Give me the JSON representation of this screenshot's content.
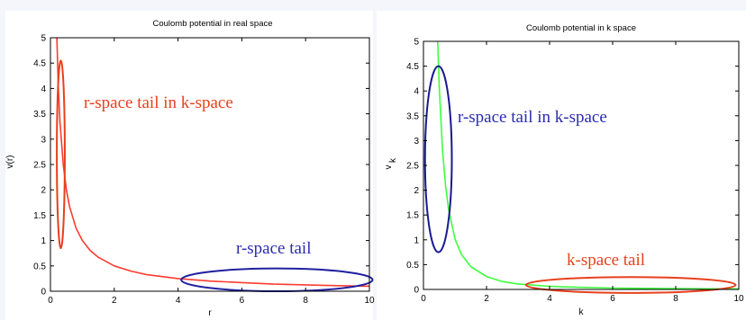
{
  "chart_data": [
    {
      "type": "line",
      "title": "Coulomb potential in real space",
      "xlabel": "r",
      "ylabel": "v(r)",
      "xlim": [
        0,
        10
      ],
      "ylim": [
        0,
        5
      ],
      "xticks": [
        0,
        2,
        4,
        6,
        8,
        10
      ],
      "yticks": [
        0,
        0.5,
        1,
        1.5,
        2,
        2.5,
        3,
        3.5,
        4,
        4.5,
        5
      ],
      "grid": false,
      "series": [
        {
          "color": "#ff3b2f",
          "x": [
            0.2,
            0.25,
            0.3,
            0.4,
            0.5,
            0.6,
            0.8,
            1.0,
            1.25,
            1.5,
            2,
            2.5,
            3,
            4,
            5,
            6,
            7,
            8,
            9,
            10
          ],
          "y": [
            5.0,
            4.0,
            3.33,
            2.5,
            2.0,
            1.67,
            1.25,
            1.0,
            0.8,
            0.67,
            0.5,
            0.4,
            0.33,
            0.25,
            0.2,
            0.17,
            0.14,
            0.125,
            0.11,
            0.1
          ]
        }
      ],
      "annotations": [
        {
          "text": "r-space tail in k-space",
          "color": "#e8401c",
          "ellipse_color": "#e8401c",
          "ellipse_x": [
            0.2,
            0.45
          ],
          "ellipse_y": [
            0.85,
            4.55
          ]
        },
        {
          "text": "r-space tail",
          "color": "#2b2bb0",
          "ellipse_color": "#2020a0",
          "ellipse_x": [
            4.1,
            10.1
          ],
          "ellipse_y": [
            0.0,
            0.45
          ]
        }
      ]
    },
    {
      "type": "line",
      "title": "Coulomb potential in k space",
      "xlabel": "k",
      "ylabel": "v",
      "ylabel_subscript": "k",
      "xlim": [
        0,
        10
      ],
      "ylim": [
        0,
        5
      ],
      "xticks": [
        0,
        2,
        4,
        6,
        8,
        10
      ],
      "yticks": [
        0,
        0.5,
        1,
        1.5,
        2,
        2.5,
        3,
        3.5,
        4,
        4.5,
        5
      ],
      "grid": false,
      "series": [
        {
          "color": "#3dff3d",
          "x": [
            0.45,
            0.5,
            0.6,
            0.7,
            0.8,
            1.0,
            1.2,
            1.5,
            2,
            2.5,
            3,
            4,
            5,
            6,
            7,
            8,
            9,
            10
          ],
          "y": [
            5.0,
            4.1,
            2.85,
            2.09,
            1.6,
            1.02,
            0.71,
            0.46,
            0.26,
            0.16,
            0.11,
            0.064,
            0.041,
            0.028,
            0.021,
            0.016,
            0.013,
            0.01
          ]
        }
      ],
      "annotations": [
        {
          "text": "r-space tail in k-space",
          "color": "#2b2bb0",
          "ellipse_color": "#1a1a90",
          "ellipse_x": [
            0.05,
            0.9
          ],
          "ellipse_y": [
            0.75,
            4.5
          ]
        },
        {
          "text": "k-space tail",
          "color": "#e8401c",
          "ellipse_color": "#e8401c",
          "ellipse_x": [
            3.25,
            9.9
          ],
          "ellipse_y": [
            -0.07,
            0.25
          ]
        }
      ]
    }
  ]
}
